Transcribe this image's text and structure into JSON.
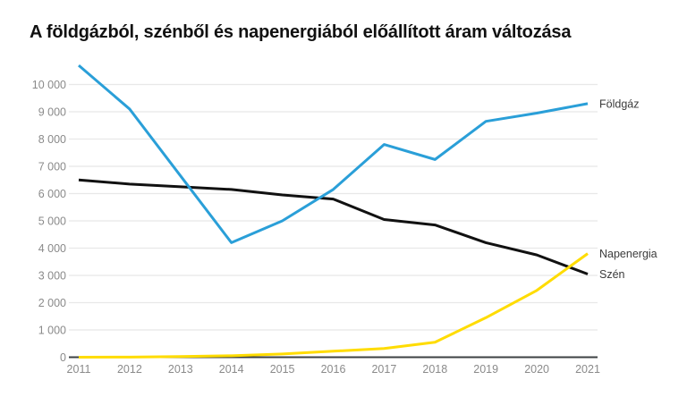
{
  "chart_data": {
    "type": "line",
    "title": "A földgázból, szénből és napenergiából előállított áram változása",
    "xlabel": "",
    "ylabel": "",
    "x": [
      2011,
      2012,
      2013,
      2014,
      2015,
      2016,
      2017,
      2018,
      2019,
      2020,
      2021
    ],
    "x_tick_labels": [
      "2011",
      "2012",
      "2013",
      "2014",
      "2015",
      "2016",
      "2017",
      "2018",
      "2019",
      "2020",
      "2021"
    ],
    "series": [
      {
        "name": "Földgáz",
        "color": "#2A9FD8",
        "values": [
          10700,
          9100,
          6650,
          4200,
          5000,
          6150,
          7800,
          7250,
          8650,
          8950,
          9300
        ]
      },
      {
        "name": "Szén",
        "color": "#111111",
        "values": [
          6500,
          6350,
          6250,
          6150,
          5950,
          5800,
          5050,
          4850,
          4200,
          3750,
          3050
        ]
      },
      {
        "name": "Napenergia",
        "color": "#FFDC00",
        "values": [
          0,
          5,
          25,
          55,
          120,
          220,
          320,
          550,
          1450,
          2450,
          3800
        ]
      }
    ],
    "ylim": [
      0,
      10700
    ],
    "yticks": [
      {
        "value": 0,
        "label": "0"
      },
      {
        "value": 1000,
        "label": "1 000"
      },
      {
        "value": 2000,
        "label": "2 000"
      },
      {
        "value": 3000,
        "label": "3 000"
      },
      {
        "value": 4000,
        "label": "4 000"
      },
      {
        "value": 5000,
        "label": "5 000"
      },
      {
        "value": 6000,
        "label": "6 000"
      },
      {
        "value": 7000,
        "label": "7 000"
      },
      {
        "value": 8000,
        "label": "8 000"
      },
      {
        "value": 9000,
        "label": "9 000"
      },
      {
        "value": 10000,
        "label": "10 000"
      }
    ],
    "grid": "horizontal",
    "legend_position": "right-of-line-ends",
    "colors": {
      "background": "#FFFFFF",
      "grid": "#E8E8E8",
      "axis": "#3C4043",
      "tick_label": "#8A8A8A",
      "series_label": "#3B3B3B",
      "title": "#111111"
    }
  }
}
